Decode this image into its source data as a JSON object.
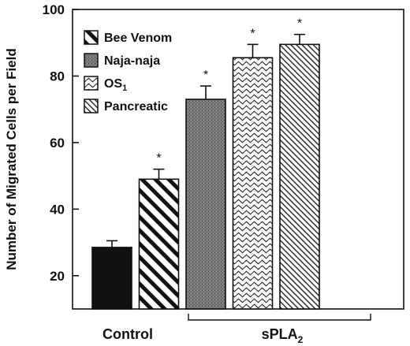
{
  "chart_data": {
    "type": "bar",
    "categories": [
      "Control",
      "Bee Venom",
      "Naja-naja",
      "OS1",
      "Pancreatic"
    ],
    "values": [
      28.5,
      49,
      73,
      85.5,
      89.5
    ],
    "errors": [
      2,
      3,
      4,
      4,
      3
    ],
    "significance": [
      "",
      "*",
      "*",
      "*",
      "*"
    ],
    "fills": [
      "solid-black",
      "diagonal-wide",
      "stipple-gray",
      "wavy",
      "diagonal-fine"
    ],
    "ylabel": "Number of Migrated Cells per Field",
    "ylim": [
      10,
      100
    ],
    "yticks": [
      20,
      40,
      60,
      80,
      100
    ],
    "grid": false,
    "legend": {
      "placement": "top-left",
      "entries": [
        {
          "name": "Bee Venom",
          "fill": "diagonal-wide"
        },
        {
          "name": "Naja-naja",
          "fill": "stipple-gray"
        },
        {
          "name": "OS",
          "sub": "1",
          "fill": "wavy"
        },
        {
          "name": "Pancreatic",
          "fill": "diagonal-fine"
        }
      ]
    },
    "group_labels": {
      "control": "Control",
      "spla2": "sPLA",
      "spla2_sub": "2"
    }
  }
}
